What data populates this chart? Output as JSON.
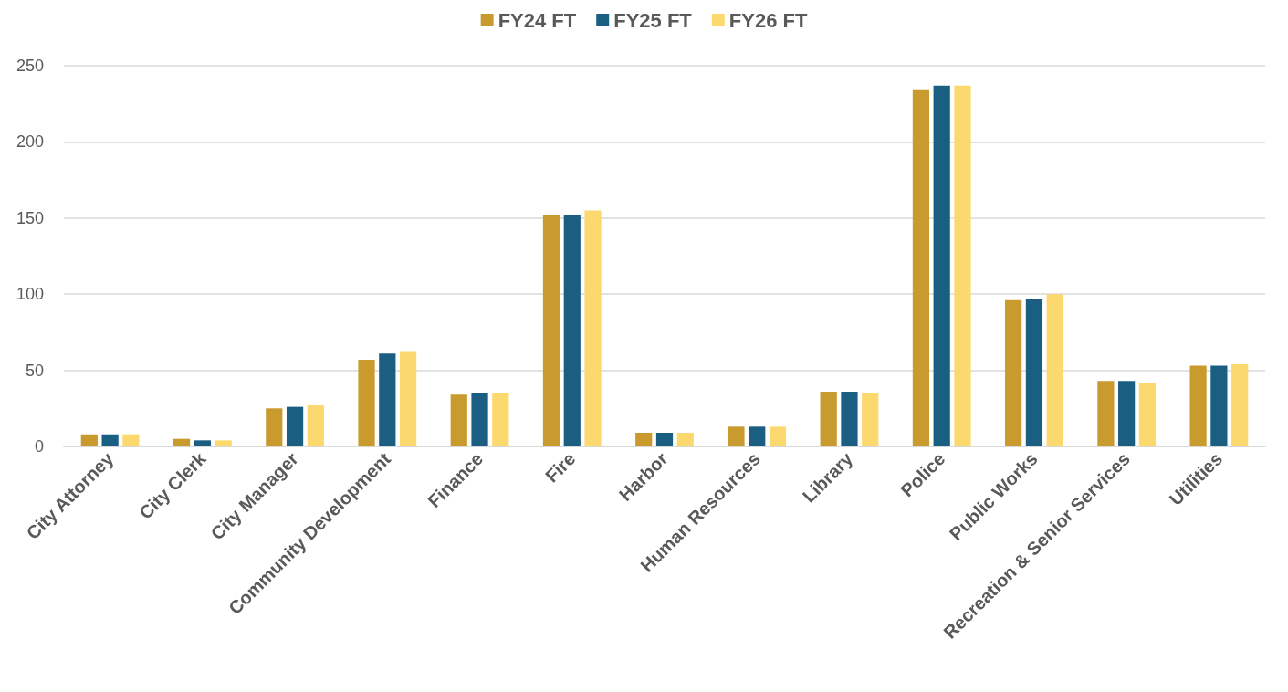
{
  "chart_data": {
    "type": "bar",
    "categories": [
      "City Attorney",
      "City Clerk",
      "City Manager",
      "Community Development",
      "Finance",
      "Fire",
      "Harbor",
      "Human Resources",
      "Library",
      "Police",
      "Public Works",
      "Recreation & Senior Services",
      "Utilities"
    ],
    "series": [
      {
        "name": "FY24 FT",
        "color": "#c99a2e",
        "values": [
          8,
          5,
          25,
          57,
          34,
          152,
          9,
          13,
          36,
          234,
          96,
          43,
          53
        ]
      },
      {
        "name": "FY25 FT",
        "color": "#1a5f82",
        "values": [
          8,
          4,
          26,
          61,
          35,
          152,
          9,
          13,
          36,
          237,
          97,
          43,
          53
        ]
      },
      {
        "name": "FY26 FT",
        "color": "#fcd96f",
        "values": [
          8,
          4,
          27,
          62,
          35,
          155,
          9,
          13,
          35,
          237,
          100,
          42,
          54
        ]
      }
    ],
    "ylim": [
      0,
      250
    ],
    "yticks": [
      0,
      50,
      100,
      150,
      200,
      250
    ],
    "grid": "y",
    "legend": "top"
  }
}
